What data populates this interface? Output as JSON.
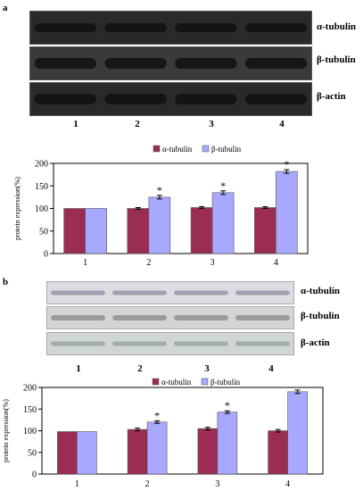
{
  "panels": [
    {
      "label": "a",
      "blot_labels": [
        "α-tubulin",
        "β-tubulin",
        "β-actin"
      ],
      "lane_labels": [
        "1",
        "2",
        "3",
        "4"
      ],
      "colors": {
        "alpha": "#9b2d55",
        "beta": "#a8a8ff",
        "blot_bg": "#2a2a2a",
        "band": "#111111"
      }
    },
    {
      "label": "b",
      "blot_labels": [
        "α-tubulin",
        "β-tubulin",
        "β-actin"
      ],
      "lane_labels": [
        "1",
        "2",
        "3",
        "4"
      ],
      "colors": {
        "alpha": "#9b2d55",
        "beta": "#a8a8ff",
        "blot_bg": "#d9d9d9",
        "band": "#8e8a98"
      }
    }
  ],
  "chart_data": [
    {
      "type": "bar",
      "categories": [
        "1",
        "2",
        "3",
        "4"
      ],
      "series": [
        {
          "name": "α-tubulin",
          "values": [
            100,
            100,
            102,
            102
          ],
          "errors": [
            0,
            2,
            2,
            2
          ],
          "color": "#9b2d55"
        },
        {
          "name": "β-tubulin",
          "values": [
            100,
            125,
            135,
            182
          ],
          "errors": [
            0,
            4,
            4,
            4
          ],
          "color": "#a8a8ff"
        }
      ],
      "significance": [
        "",
        "*",
        "*",
        "*"
      ],
      "ylabel": "protein expression(%)",
      "xlabel": "",
      "ylim": [
        0,
        200
      ],
      "yticks": [
        0,
        50,
        100,
        150,
        200
      ],
      "grid": false,
      "legend": "top"
    },
    {
      "type": "bar",
      "categories": [
        "1",
        "2",
        "3",
        "4"
      ],
      "series": [
        {
          "name": "α-tubulin",
          "values": [
            98,
            103,
            105,
            100
          ],
          "errors": [
            0,
            3,
            3,
            3
          ],
          "color": "#9b2d55"
        },
        {
          "name": "β-tubulin",
          "values": [
            98,
            120,
            143,
            190
          ],
          "errors": [
            0,
            3,
            3,
            4
          ],
          "color": "#a8a8ff"
        }
      ],
      "significance": [
        "",
        "*",
        "*",
        ""
      ],
      "ylabel": "protein expression(%)",
      "xlabel": "",
      "ylim": [
        0,
        200
      ],
      "yticks": [
        0,
        50,
        100,
        150,
        200
      ],
      "grid": false,
      "legend": "top"
    }
  ]
}
